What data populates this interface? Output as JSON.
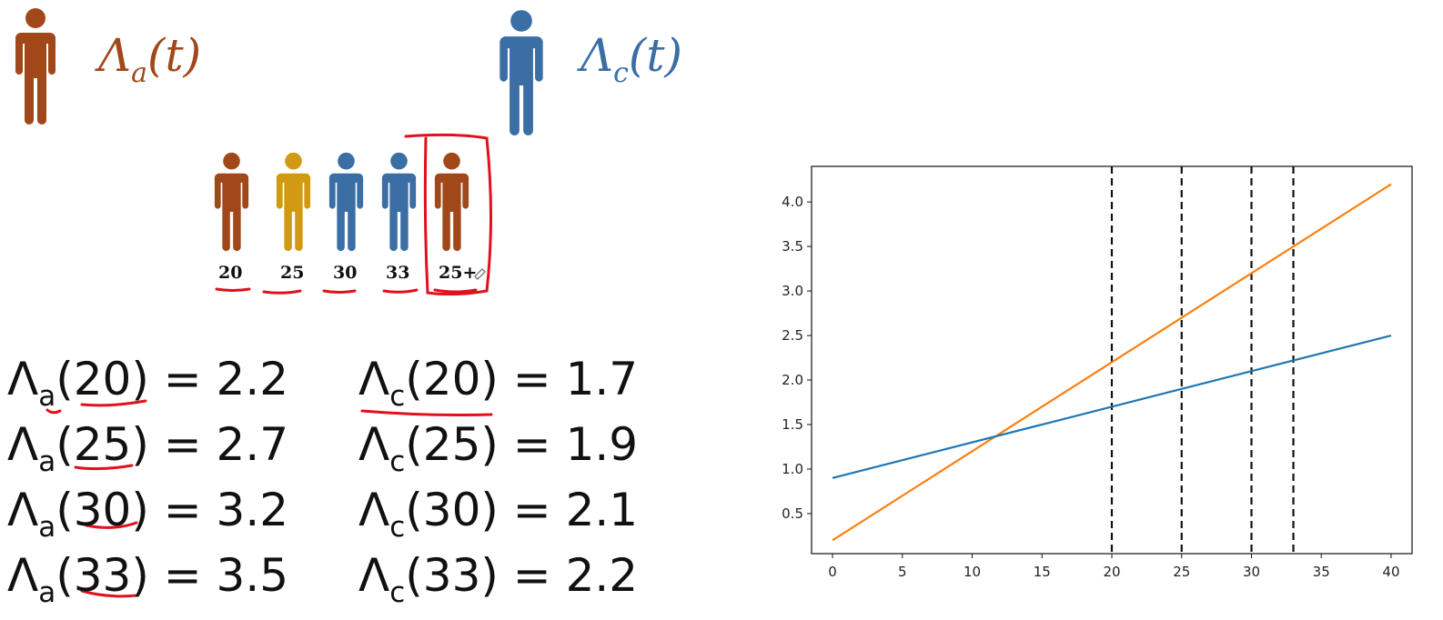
{
  "legend": {
    "a": {
      "symbol": "Λ",
      "sub": "a",
      "arg": "(t)",
      "color": "#a0481a"
    },
    "c": {
      "symbol": "Λ",
      "sub": "c",
      "arg": "(t)",
      "color": "#3a6ea5"
    }
  },
  "people": [
    {
      "age": "20",
      "color": "#a0481a",
      "name": "person-20"
    },
    {
      "age": "25",
      "color": "#d19a12",
      "name": "person-25"
    },
    {
      "age": "30",
      "color": "#3a6ea5",
      "name": "person-30"
    },
    {
      "age": "33",
      "color": "#3a6ea5",
      "name": "person-33"
    },
    {
      "age": "25+",
      "color": "#a0481a",
      "name": "person-25-plus"
    }
  ],
  "equations": {
    "a": [
      {
        "symbol": "Λ",
        "sub": "a",
        "open": "(",
        "arg": "20",
        "rest": ") = 2.2"
      },
      {
        "symbol": "Λ",
        "sub": "a",
        "open": "(",
        "arg": "25",
        "rest": ") = 2.7"
      },
      {
        "symbol": "Λ",
        "sub": "a",
        "open": "(",
        "arg": "30",
        "rest": ") = 3.2"
      },
      {
        "symbol": "Λ",
        "sub": "a",
        "open": "(",
        "arg": "33",
        "rest": ") = 3.5"
      }
    ],
    "c": [
      {
        "symbol": "Λ",
        "sub": "c",
        "open": "(",
        "arg": "20",
        "rest": ") = 1.7"
      },
      {
        "symbol": "Λ",
        "sub": "c",
        "open": "(",
        "arg": "25",
        "rest": ") = 1.9"
      },
      {
        "symbol": "Λ",
        "sub": "c",
        "open": "(",
        "arg": "30",
        "rest": ") = 2.1"
      },
      {
        "symbol": "Λ",
        "sub": "c",
        "open": "(",
        "arg": "33",
        "rest": ") = 2.2"
      }
    ]
  },
  "colors": {
    "annotation_red": "#e0101c",
    "series_a": "#ff7f0e",
    "series_c": "#1f77b4"
  },
  "chart_data": {
    "type": "line",
    "title": "",
    "xlabel": "",
    "ylabel": "",
    "xlim": [
      -1.5,
      41.5
    ],
    "ylim": [
      0.05,
      4.4
    ],
    "xticks": [
      0,
      5,
      10,
      15,
      20,
      25,
      30,
      35,
      40
    ],
    "yticks": [
      0.5,
      1.0,
      1.5,
      2.0,
      2.5,
      3.0,
      3.5,
      4.0
    ],
    "xtick_labels": [
      "0",
      "5",
      "10",
      "15",
      "20",
      "25",
      "30",
      "35",
      "40"
    ],
    "ytick_labels": [
      "0.5",
      "1.0",
      "1.5",
      "2.0",
      "2.5",
      "3.0",
      "3.5",
      "4.0"
    ],
    "series": [
      {
        "x": [
          0,
          40
        ],
        "y": [
          0.2,
          4.2
        ],
        "color": "#ff7f0e"
      },
      {
        "x": [
          0,
          40
        ],
        "y": [
          0.9,
          2.5
        ],
        "color": "#1f77b4"
      }
    ],
    "vlines": [
      20,
      25,
      30,
      33
    ],
    "vline_style": "dashed",
    "grid": false
  }
}
